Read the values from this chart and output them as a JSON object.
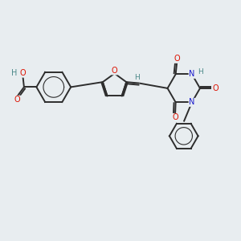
{
  "bg_color": "#e8edf0",
  "bond_color": "#2d2d2d",
  "bond_width": 1.4,
  "atom_colors": {
    "O": "#dd1100",
    "N": "#1a1acc",
    "H": "#4a8888",
    "C": "#2d2d2d"
  },
  "font_size": 7.0,
  "fig_width": 3.0,
  "fig_height": 3.0,
  "dpi": 100
}
